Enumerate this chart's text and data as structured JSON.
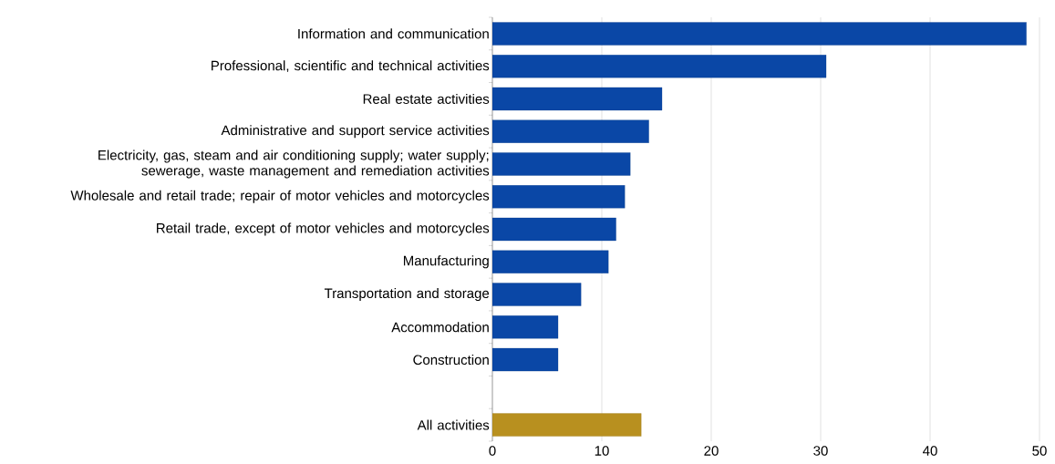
{
  "chart_data": {
    "type": "bar",
    "orientation": "horizontal",
    "categories": [
      "Information and communication",
      "Professional, scientific and technical activities",
      "Real estate activities",
      "Administrative and support service activities",
      "Electricity, gas, steam and air conditioning supply; water supply; sewerage, waste management and remediation activities",
      "Wholesale and retail trade; repair of motor vehicles and motorcycles",
      "Retail trade, except of motor vehicles and motorcycles",
      "Manufacturing",
      "Transportation and storage",
      "Accommodation",
      "Construction",
      null,
      "All activities"
    ],
    "values": [
      48.8,
      30.5,
      15.5,
      14.3,
      12.6,
      12.1,
      11.3,
      10.6,
      8.1,
      6.0,
      6.0,
      null,
      13.6
    ],
    "colors": [
      "#0a47a6",
      "#0a47a6",
      "#0a47a6",
      "#0a47a6",
      "#0a47a6",
      "#0a47a6",
      "#0a47a6",
      "#0a47a6",
      "#0a47a6",
      "#0a47a6",
      "#0a47a6",
      "#0a47a6",
      "#b8901f"
    ],
    "xlim": [
      0,
      50
    ],
    "xticks": [
      0,
      10,
      20,
      30,
      40,
      50
    ],
    "grid": "x"
  }
}
